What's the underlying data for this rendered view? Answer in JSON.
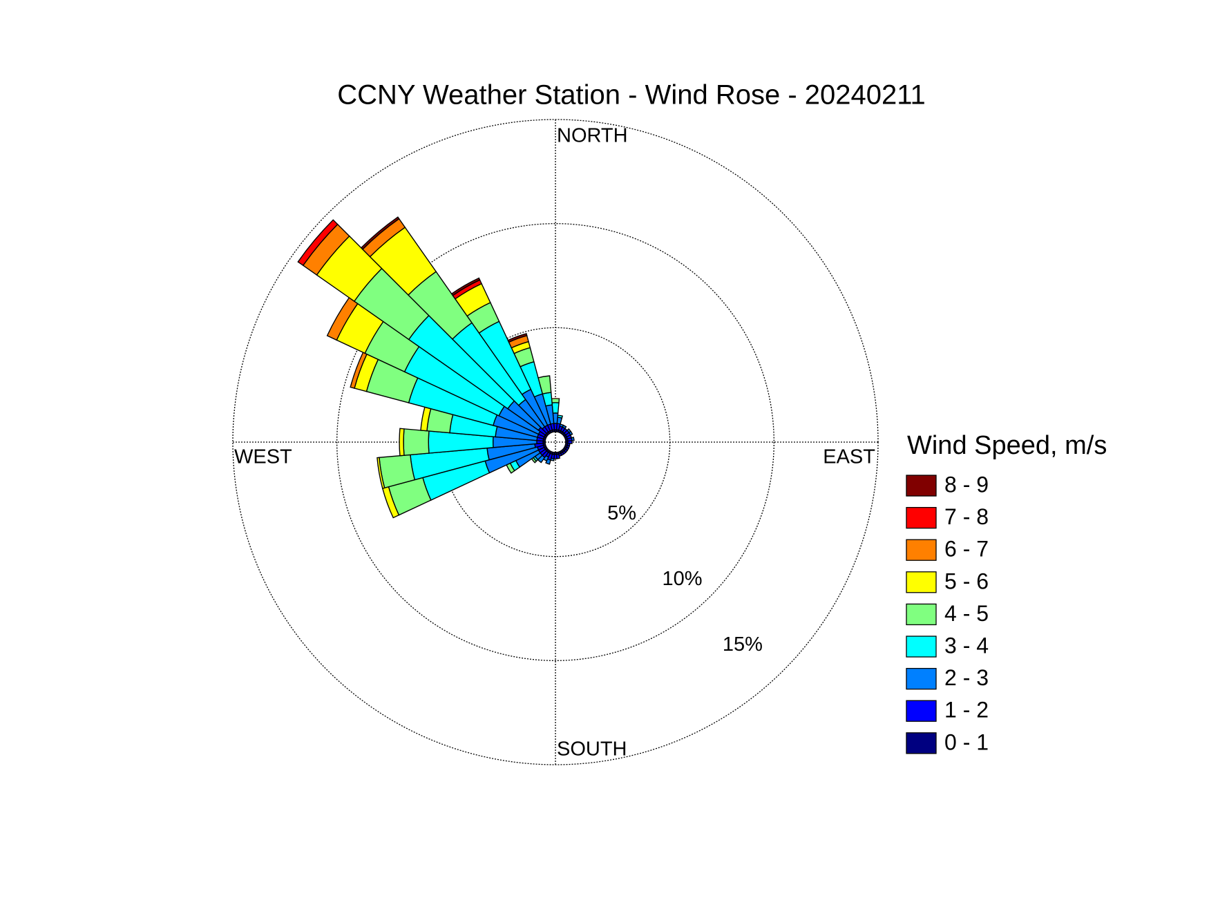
{
  "chart_data": {
    "type": "windrose",
    "title": "CCNY Weather Station - Wind Rose - 20240211",
    "directions": [
      "NORTH",
      "EAST",
      "SOUTH",
      "WEST"
    ],
    "legend_title": "Wind Speed, m/s",
    "x": [
      0,
      10,
      20,
      30,
      40,
      50,
      60,
      70,
      80,
      90,
      100,
      110,
      120,
      130,
      140,
      150,
      160,
      170,
      180,
      190,
      200,
      210,
      220,
      230,
      240,
      250,
      260,
      270,
      280,
      290,
      300,
      310,
      320,
      330,
      340,
      350
    ],
    "rlim": [
      0,
      15
    ],
    "rticks": [
      {
        "value": 5,
        "label": "5%"
      },
      {
        "value": 10,
        "label": "10%"
      },
      {
        "value": 15,
        "label": "15%"
      }
    ],
    "series": [
      {
        "name": "0 - 1",
        "color": "#000080",
        "values": [
          0.1,
          0.1,
          0.1,
          0.1,
          0.1,
          0.1,
          0.1,
          0.1,
          0.1,
          0.1,
          0.1,
          0.1,
          0.1,
          0.1,
          0.1,
          0.1,
          0.1,
          0.1,
          0.1,
          0.1,
          0.1,
          0.1,
          0.1,
          0.1,
          0.1,
          0.1,
          0.1,
          0.1,
          0.1,
          0.1,
          0.1,
          0.1,
          0.1,
          0.1,
          0.1,
          0.1
        ]
      },
      {
        "name": "1 - 2",
        "color": "#0000FF",
        "values": [
          0.3,
          0.3,
          0.2,
          0.2,
          0.2,
          0.2,
          0.2,
          0.2,
          0.2,
          0.2,
          0.1,
          0.1,
          0.1,
          0.1,
          0.1,
          0.1,
          0.1,
          0.2,
          0.2,
          0.2,
          0.3,
          0.2,
          0.3,
          0.3,
          0.3,
          0.3,
          0.4,
          0.3,
          0.3,
          0.3,
          0.3,
          0.4,
          0.3,
          0.3,
          0.3,
          0.3
        ]
      },
      {
        "name": "2 - 3",
        "color": "#0080FF",
        "values": [
          0.5,
          0.3,
          0.1,
          0.1,
          0,
          0.1,
          0.1,
          0,
          0.1,
          0,
          0,
          0,
          0,
          0,
          0,
          0,
          0,
          0,
          0,
          0.1,
          0.2,
          0.2,
          0.3,
          0.3,
          1.2,
          2.6,
          2.3,
          2.1,
          2.0,
          2.2,
          2.1,
          1.8,
          1.6,
          1.9,
          1.5,
          0.9
        ]
      },
      {
        "name": "3 - 4",
        "color": "#00FFFF",
        "values": [
          0.5,
          0.1,
          0,
          0,
          0,
          0,
          0,
          0,
          0,
          0,
          0,
          0,
          0,
          0,
          0,
          0,
          0,
          0,
          0,
          0,
          0,
          0,
          0,
          0.1,
          0.3,
          3.1,
          3.7,
          3.1,
          2.2,
          4.2,
          5.0,
          5.8,
          4.5,
          3.6,
          1.6,
          0.6
        ]
      },
      {
        "name": "4 - 5",
        "color": "#80FF80",
        "values": [
          0.2,
          0,
          0,
          0,
          0,
          0,
          0,
          0,
          0,
          0,
          0,
          0,
          0,
          0,
          0,
          0,
          0,
          0,
          0,
          0,
          0,
          0,
          0,
          0.1,
          0.2,
          1.7,
          1.5,
          1.2,
          1.1,
          2.1,
          2.1,
          3.2,
          3.0,
          1.0,
          0.7,
          0.8
        ]
      },
      {
        "name": "5 - 6",
        "color": "#FFFF00",
        "values": [
          0,
          0,
          0,
          0,
          0,
          0,
          0,
          0,
          0,
          0,
          0,
          0,
          0,
          0,
          0,
          0,
          0,
          0,
          0,
          0,
          0,
          0,
          0,
          0,
          0,
          0.3,
          0.1,
          0.2,
          0.3,
          0.6,
          1.5,
          2.2,
          2.6,
          1.0,
          0.3,
          0
        ]
      },
      {
        "name": "6 - 7",
        "color": "#FF8000",
        "values": [
          0,
          0,
          0,
          0,
          0,
          0,
          0,
          0,
          0,
          0,
          0,
          0,
          0,
          0,
          0,
          0,
          0,
          0,
          0,
          0,
          0,
          0,
          0,
          0,
          0,
          0,
          0,
          0,
          0,
          0.2,
          0.5,
          0.8,
          0.5,
          0,
          0.3,
          0
        ]
      },
      {
        "name": "7 - 8",
        "color": "#FF0000",
        "values": [
          0,
          0,
          0,
          0,
          0,
          0,
          0,
          0,
          0,
          0,
          0,
          0,
          0,
          0,
          0,
          0,
          0,
          0,
          0,
          0,
          0,
          0,
          0,
          0,
          0,
          0,
          0,
          0,
          0,
          0,
          0,
          0.3,
          0,
          0.2,
          0,
          0
        ]
      },
      {
        "name": "8 - 9",
        "color": "#800000",
        "values": [
          0,
          0,
          0,
          0,
          0,
          0,
          0,
          0,
          0,
          0,
          0,
          0,
          0,
          0,
          0,
          0,
          0,
          0,
          0,
          0,
          0,
          0,
          0,
          0,
          0,
          0,
          0,
          0,
          0.0,
          0,
          0,
          0,
          0.1,
          0.1,
          0.1,
          0
        ]
      }
    ]
  }
}
